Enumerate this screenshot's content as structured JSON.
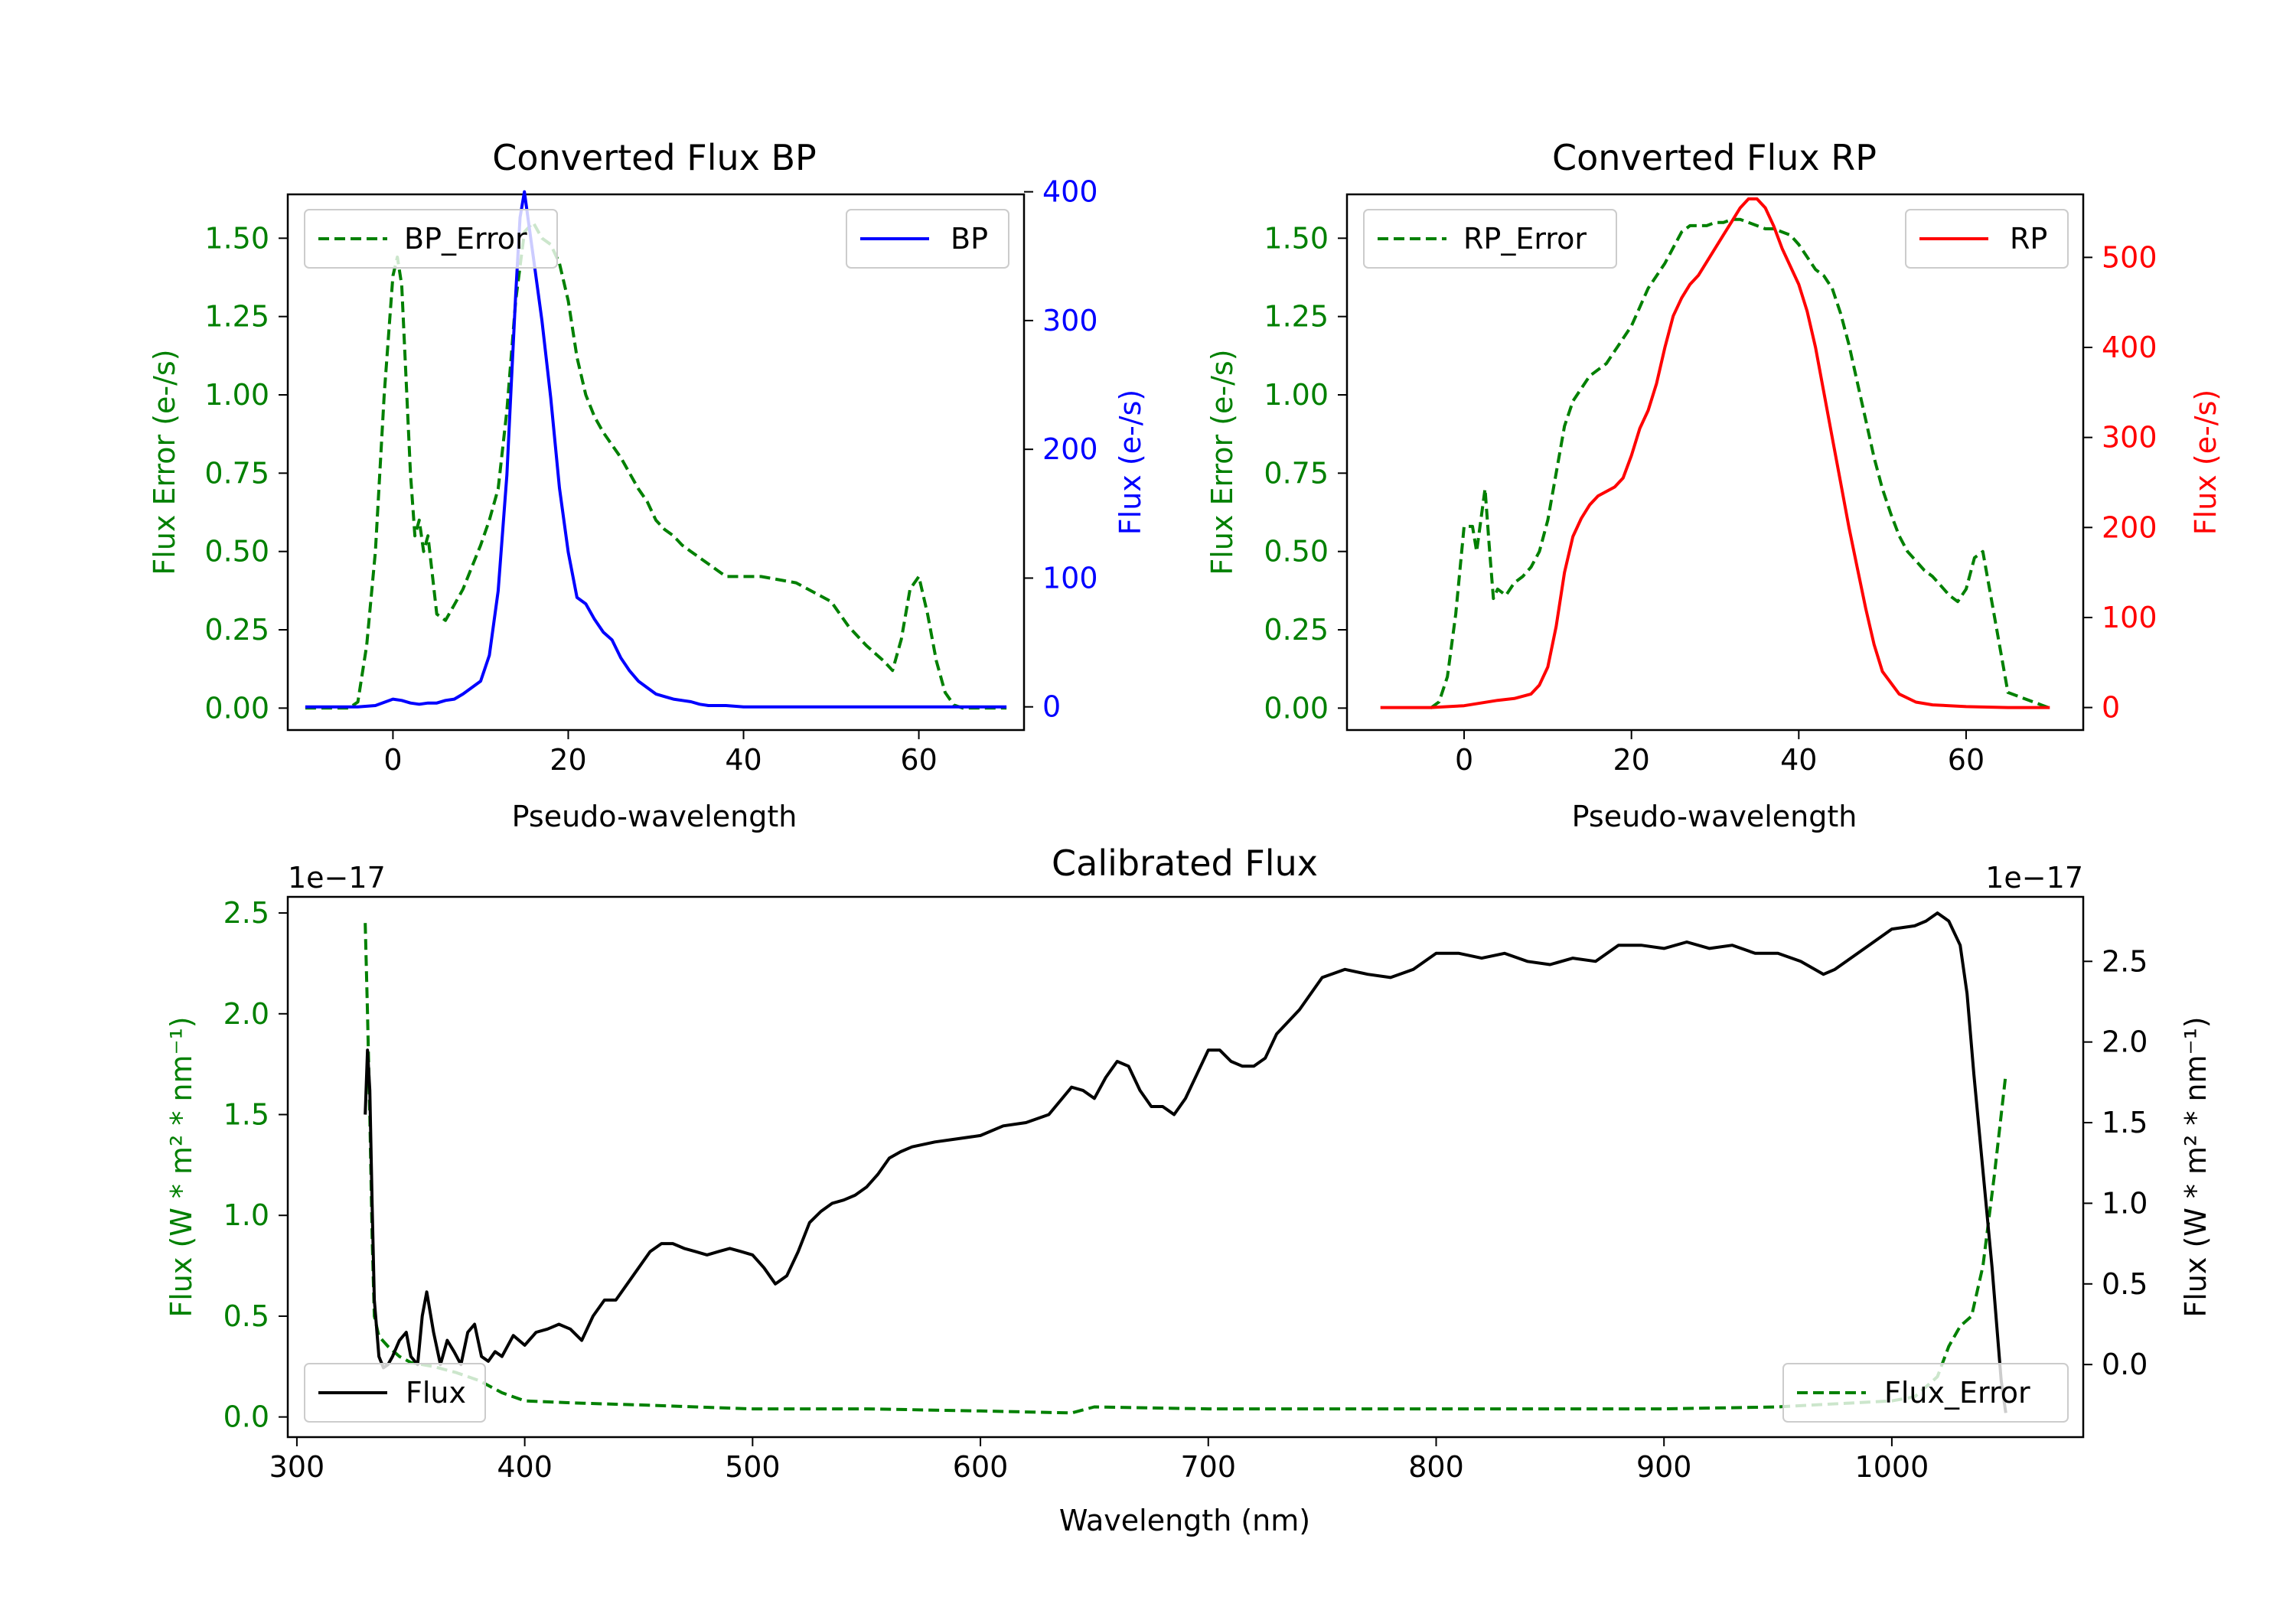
{
  "colors": {
    "green": "#008000",
    "blue": "#0000ff",
    "red": "#ff0000",
    "black": "#000000"
  },
  "chart_data": [
    {
      "id": "bp",
      "type": "line",
      "title": "Converted Flux BP",
      "xlabel": "Pseudo-wavelength",
      "ylabel_left": "Flux Error (e-/s)",
      "ylabel_right": "Flux (e-/s)",
      "xlim": [
        -12,
        72
      ],
      "ylim_left": [
        -0.07,
        1.64
      ],
      "ylim_right": [
        -18,
        398
      ],
      "xticks": [
        "0",
        "20",
        "40",
        "60"
      ],
      "xtick_values": [
        0,
        20,
        40,
        60
      ],
      "yticks_left": [
        "0.00",
        "0.25",
        "0.50",
        "0.75",
        "1.00",
        "1.25",
        "1.50"
      ],
      "ytick_values_left": [
        0,
        0.25,
        0.5,
        0.75,
        1.0,
        1.25,
        1.5
      ],
      "yticks_right": [
        "0",
        "100",
        "200",
        "300",
        "400"
      ],
      "ytick_values_right": [
        0,
        100,
        200,
        300,
        400
      ],
      "series": [
        {
          "name": "BP_Error",
          "axis": "left",
          "style": "dashed",
          "color": "#008000",
          "x": [
            -10,
            -5,
            -4,
            -3,
            -2,
            -1,
            0,
            0.5,
            1,
            2,
            2.5,
            3,
            3.5,
            4,
            5,
            6,
            7,
            8,
            9,
            10,
            11,
            12,
            13,
            14,
            15,
            16,
            17,
            18,
            19,
            20,
            21,
            22,
            23,
            24,
            25,
            26,
            27,
            28,
            29,
            30,
            31,
            32,
            33,
            34,
            35,
            36,
            37,
            38,
            40,
            42,
            44,
            46,
            48,
            50,
            52,
            54,
            56,
            57,
            58,
            59,
            60,
            61,
            62,
            63,
            64,
            65,
            66,
            67,
            68,
            70
          ],
          "y": [
            0.0,
            0.0,
            0.02,
            0.2,
            0.5,
            1.0,
            1.38,
            1.44,
            1.35,
            0.75,
            0.55,
            0.6,
            0.5,
            0.55,
            0.3,
            0.28,
            0.33,
            0.38,
            0.45,
            0.52,
            0.6,
            0.7,
            0.95,
            1.3,
            1.52,
            1.55,
            1.5,
            1.48,
            1.42,
            1.3,
            1.12,
            1.0,
            0.93,
            0.88,
            0.84,
            0.8,
            0.75,
            0.7,
            0.66,
            0.6,
            0.57,
            0.55,
            0.52,
            0.5,
            0.48,
            0.46,
            0.44,
            0.42,
            0.42,
            0.42,
            0.41,
            0.4,
            0.37,
            0.34,
            0.26,
            0.2,
            0.15,
            0.12,
            0.22,
            0.38,
            0.42,
            0.3,
            0.15,
            0.05,
            0.01,
            0.0,
            0.0,
            0.0,
            0.0,
            0.0
          ]
        },
        {
          "name": "BP",
          "axis": "right",
          "style": "solid",
          "color": "#0000ff",
          "x": [
            -10,
            -6,
            -4,
            -2,
            0,
            1,
            2,
            3,
            4,
            5,
            6,
            7,
            8,
            9,
            10,
            11,
            12,
            13,
            13.5,
            14,
            14.5,
            15,
            15.5,
            16,
            17,
            18,
            19,
            20,
            21,
            22,
            23,
            24,
            25,
            26,
            27,
            28,
            29,
            30,
            31,
            32,
            33,
            34,
            35,
            36,
            38,
            40,
            45,
            50,
            55,
            60,
            65,
            70
          ],
          "y": [
            0,
            0,
            0,
            1,
            6,
            5,
            3,
            2,
            3,
            3,
            5,
            6,
            10,
            15,
            20,
            40,
            90,
            180,
            250,
            320,
            380,
            400,
            375,
            350,
            300,
            240,
            170,
            120,
            85,
            80,
            68,
            58,
            52,
            38,
            28,
            20,
            15,
            10,
            8,
            6,
            5,
            4,
            2,
            1,
            1,
            0,
            0,
            0,
            0,
            0,
            0,
            0
          ]
        }
      ]
    },
    {
      "id": "rp",
      "type": "line",
      "title": "Converted Flux RP",
      "xlabel": "Pseudo-wavelength",
      "ylabel_left": "Flux Error (e-/s)",
      "ylabel_right": "Flux (e-/s)",
      "xlim": [
        -14,
        74
      ],
      "ylim_left": [
        -0.07,
        1.64
      ],
      "ylim_right": [
        -25,
        570
      ],
      "xticks": [
        "0",
        "20",
        "40",
        "60"
      ],
      "xtick_values": [
        0,
        20,
        40,
        60
      ],
      "yticks_left": [
        "0.00",
        "0.25",
        "0.50",
        "0.75",
        "1.00",
        "1.25",
        "1.50"
      ],
      "ytick_values_left": [
        0,
        0.25,
        0.5,
        0.75,
        1.0,
        1.25,
        1.5
      ],
      "yticks_right": [
        "0",
        "100",
        "200",
        "300",
        "400",
        "500"
      ],
      "ytick_values_right": [
        0,
        100,
        200,
        300,
        400,
        500
      ],
      "series": [
        {
          "name": "RP_Error",
          "axis": "left",
          "style": "dashed",
          "color": "#008000",
          "x": [
            -4,
            -3,
            -2,
            -1,
            0,
            1,
            1.5,
            2,
            2.5,
            3,
            3.5,
            4,
            5,
            6,
            7,
            8,
            9,
            10,
            11,
            12,
            13,
            14,
            15,
            16,
            17,
            18,
            19,
            20,
            21,
            22,
            23,
            24,
            25,
            26,
            27,
            28,
            29,
            30,
            31,
            32,
            33,
            34,
            35,
            36,
            37,
            38,
            39,
            40,
            41,
            42,
            43,
            44,
            45,
            46,
            47,
            48,
            49,
            50,
            51,
            52,
            53,
            54,
            55,
            56,
            57,
            58,
            59,
            60,
            61,
            62,
            63,
            64,
            65,
            70
          ],
          "y": [
            0.0,
            0.02,
            0.1,
            0.3,
            0.58,
            0.58,
            0.5,
            0.6,
            0.7,
            0.52,
            0.35,
            0.38,
            0.36,
            0.4,
            0.42,
            0.45,
            0.5,
            0.6,
            0.75,
            0.9,
            0.98,
            1.02,
            1.06,
            1.08,
            1.1,
            1.14,
            1.18,
            1.22,
            1.28,
            1.34,
            1.38,
            1.42,
            1.47,
            1.52,
            1.54,
            1.54,
            1.54,
            1.55,
            1.55,
            1.56,
            1.56,
            1.55,
            1.54,
            1.53,
            1.53,
            1.52,
            1.51,
            1.48,
            1.44,
            1.4,
            1.38,
            1.34,
            1.26,
            1.16,
            1.04,
            0.92,
            0.8,
            0.7,
            0.62,
            0.55,
            0.5,
            0.47,
            0.44,
            0.42,
            0.39,
            0.36,
            0.34,
            0.38,
            0.48,
            0.5,
            0.35,
            0.2,
            0.05,
            0.0
          ]
        },
        {
          "name": "RP",
          "axis": "right",
          "style": "solid",
          "color": "#ff0000",
          "x": [
            -10,
            -4,
            0,
            2,
            4,
            6,
            8,
            9,
            10,
            11,
            12,
            13,
            14,
            15,
            16,
            17,
            18,
            19,
            20,
            21,
            22,
            23,
            24,
            25,
            26,
            27,
            28,
            29,
            30,
            31,
            32,
            33,
            34,
            35,
            36,
            37,
            38,
            39,
            40,
            41,
            42,
            43,
            44,
            45,
            46,
            47,
            48,
            49,
            50,
            52,
            54,
            56,
            60,
            65,
            70
          ],
          "y": [
            0,
            0,
            2,
            5,
            8,
            10,
            15,
            25,
            45,
            90,
            150,
            190,
            210,
            225,
            235,
            240,
            245,
            255,
            280,
            310,
            330,
            360,
            400,
            435,
            455,
            470,
            480,
            495,
            510,
            525,
            540,
            555,
            565,
            565,
            555,
            535,
            510,
            490,
            470,
            440,
            400,
            350,
            300,
            250,
            200,
            155,
            110,
            70,
            40,
            15,
            6,
            3,
            1,
            0,
            0
          ]
        }
      ]
    },
    {
      "id": "cal",
      "type": "line",
      "title": "Calibrated Flux",
      "xlabel": "Wavelength (nm)",
      "ylabel_left": "Flux (W * m² * nm⁻¹)",
      "ylabel_right": "Flux (W * m² * nm⁻¹)",
      "offset_left": "1e−17",
      "offset_right": "1e−17",
      "xlim": [
        296,
        1084
      ],
      "ylim_left": [
        -0.1,
        2.58
      ],
      "ylim_right": [
        -0.45,
        2.9
      ],
      "xticks": [
        "300",
        "400",
        "500",
        "600",
        "700",
        "800",
        "900",
        "1000"
      ],
      "xtick_values": [
        300,
        400,
        500,
        600,
        700,
        800,
        900,
        1000
      ],
      "yticks_left": [
        "0.0",
        "0.5",
        "1.0",
        "1.5",
        "2.0",
        "2.5"
      ],
      "ytick_values_left": [
        0,
        0.5,
        1.0,
        1.5,
        2.0,
        2.5
      ],
      "yticks_right": [
        "0.0",
        "0.5",
        "1.0",
        "1.5",
        "2.0",
        "2.5"
      ],
      "ytick_values_right": [
        0,
        0.5,
        1.0,
        1.5,
        2.0,
        2.5
      ],
      "series": [
        {
          "name": "Flux_Error",
          "axis": "left",
          "style": "dashed",
          "color": "#008000",
          "x": [
            330,
            331,
            332,
            333,
            334,
            336,
            340,
            345,
            350,
            360,
            370,
            380,
            390,
            400,
            420,
            450,
            500,
            550,
            600,
            640,
            650,
            700,
            800,
            900,
            950,
            1000,
            1010,
            1020,
            1025,
            1030,
            1035,
            1040,
            1045,
            1050
          ],
          "y": [
            2.45,
            2.0,
            1.5,
            0.9,
            0.5,
            0.4,
            0.35,
            0.3,
            0.27,
            0.25,
            0.22,
            0.18,
            0.12,
            0.08,
            0.07,
            0.06,
            0.04,
            0.04,
            0.03,
            0.02,
            0.05,
            0.04,
            0.04,
            0.04,
            0.05,
            0.08,
            0.1,
            0.2,
            0.35,
            0.45,
            0.5,
            0.75,
            1.2,
            1.7
          ]
        },
        {
          "name": "Flux",
          "axis": "right",
          "style": "solid",
          "color": "#000000",
          "x": [
            330,
            331,
            332,
            333,
            334,
            336,
            338,
            340,
            342,
            345,
            348,
            350,
            353,
            355,
            357,
            360,
            363,
            366,
            369,
            372,
            375,
            378,
            381,
            384,
            387,
            390,
            395,
            400,
            405,
            410,
            415,
            420,
            425,
            430,
            435,
            440,
            445,
            450,
            455,
            460,
            465,
            470,
            475,
            480,
            485,
            490,
            495,
            500,
            505,
            510,
            515,
            520,
            525,
            530,
            535,
            540,
            545,
            550,
            555,
            560,
            565,
            570,
            580,
            590,
            600,
            610,
            620,
            630,
            640,
            645,
            650,
            655,
            660,
            665,
            670,
            675,
            680,
            685,
            690,
            695,
            700,
            705,
            710,
            715,
            720,
            725,
            730,
            740,
            750,
            760,
            770,
            780,
            790,
            800,
            810,
            820,
            830,
            840,
            850,
            860,
            870,
            880,
            890,
            900,
            910,
            920,
            930,
            940,
            950,
            960,
            970,
            975,
            980,
            990,
            1000,
            1010,
            1015,
            1020,
            1025,
            1030,
            1033,
            1036,
            1040,
            1044,
            1048,
            1050
          ],
          "y": [
            1.55,
            1.95,
            1.7,
            1.0,
            0.4,
            0.05,
            -0.02,
            0.0,
            0.05,
            0.15,
            0.2,
            0.05,
            0.0,
            0.3,
            0.45,
            0.2,
            0.0,
            0.15,
            0.08,
            0.0,
            0.2,
            0.25,
            0.05,
            0.02,
            0.08,
            0.05,
            0.18,
            0.12,
            0.2,
            0.22,
            0.25,
            0.22,
            0.15,
            0.3,
            0.4,
            0.4,
            0.5,
            0.6,
            0.7,
            0.75,
            0.75,
            0.72,
            0.7,
            0.68,
            0.7,
            0.72,
            0.7,
            0.68,
            0.6,
            0.5,
            0.55,
            0.7,
            0.88,
            0.95,
            1.0,
            1.02,
            1.05,
            1.1,
            1.18,
            1.28,
            1.32,
            1.35,
            1.38,
            1.4,
            1.42,
            1.48,
            1.5,
            1.55,
            1.72,
            1.7,
            1.65,
            1.78,
            1.88,
            1.85,
            1.7,
            1.6,
            1.6,
            1.55,
            1.65,
            1.8,
            1.95,
            1.95,
            1.88,
            1.85,
            1.85,
            1.9,
            2.05,
            2.2,
            2.4,
            2.45,
            2.42,
            2.4,
            2.45,
            2.55,
            2.55,
            2.52,
            2.55,
            2.5,
            2.48,
            2.52,
            2.5,
            2.6,
            2.6,
            2.58,
            2.62,
            2.58,
            2.6,
            2.55,
            2.55,
            2.5,
            2.42,
            2.45,
            2.5,
            2.6,
            2.7,
            2.72,
            2.75,
            2.8,
            2.75,
            2.6,
            2.3,
            1.8,
            1.2,
            0.6,
            -0.1,
            -0.3
          ]
        }
      ]
    }
  ]
}
